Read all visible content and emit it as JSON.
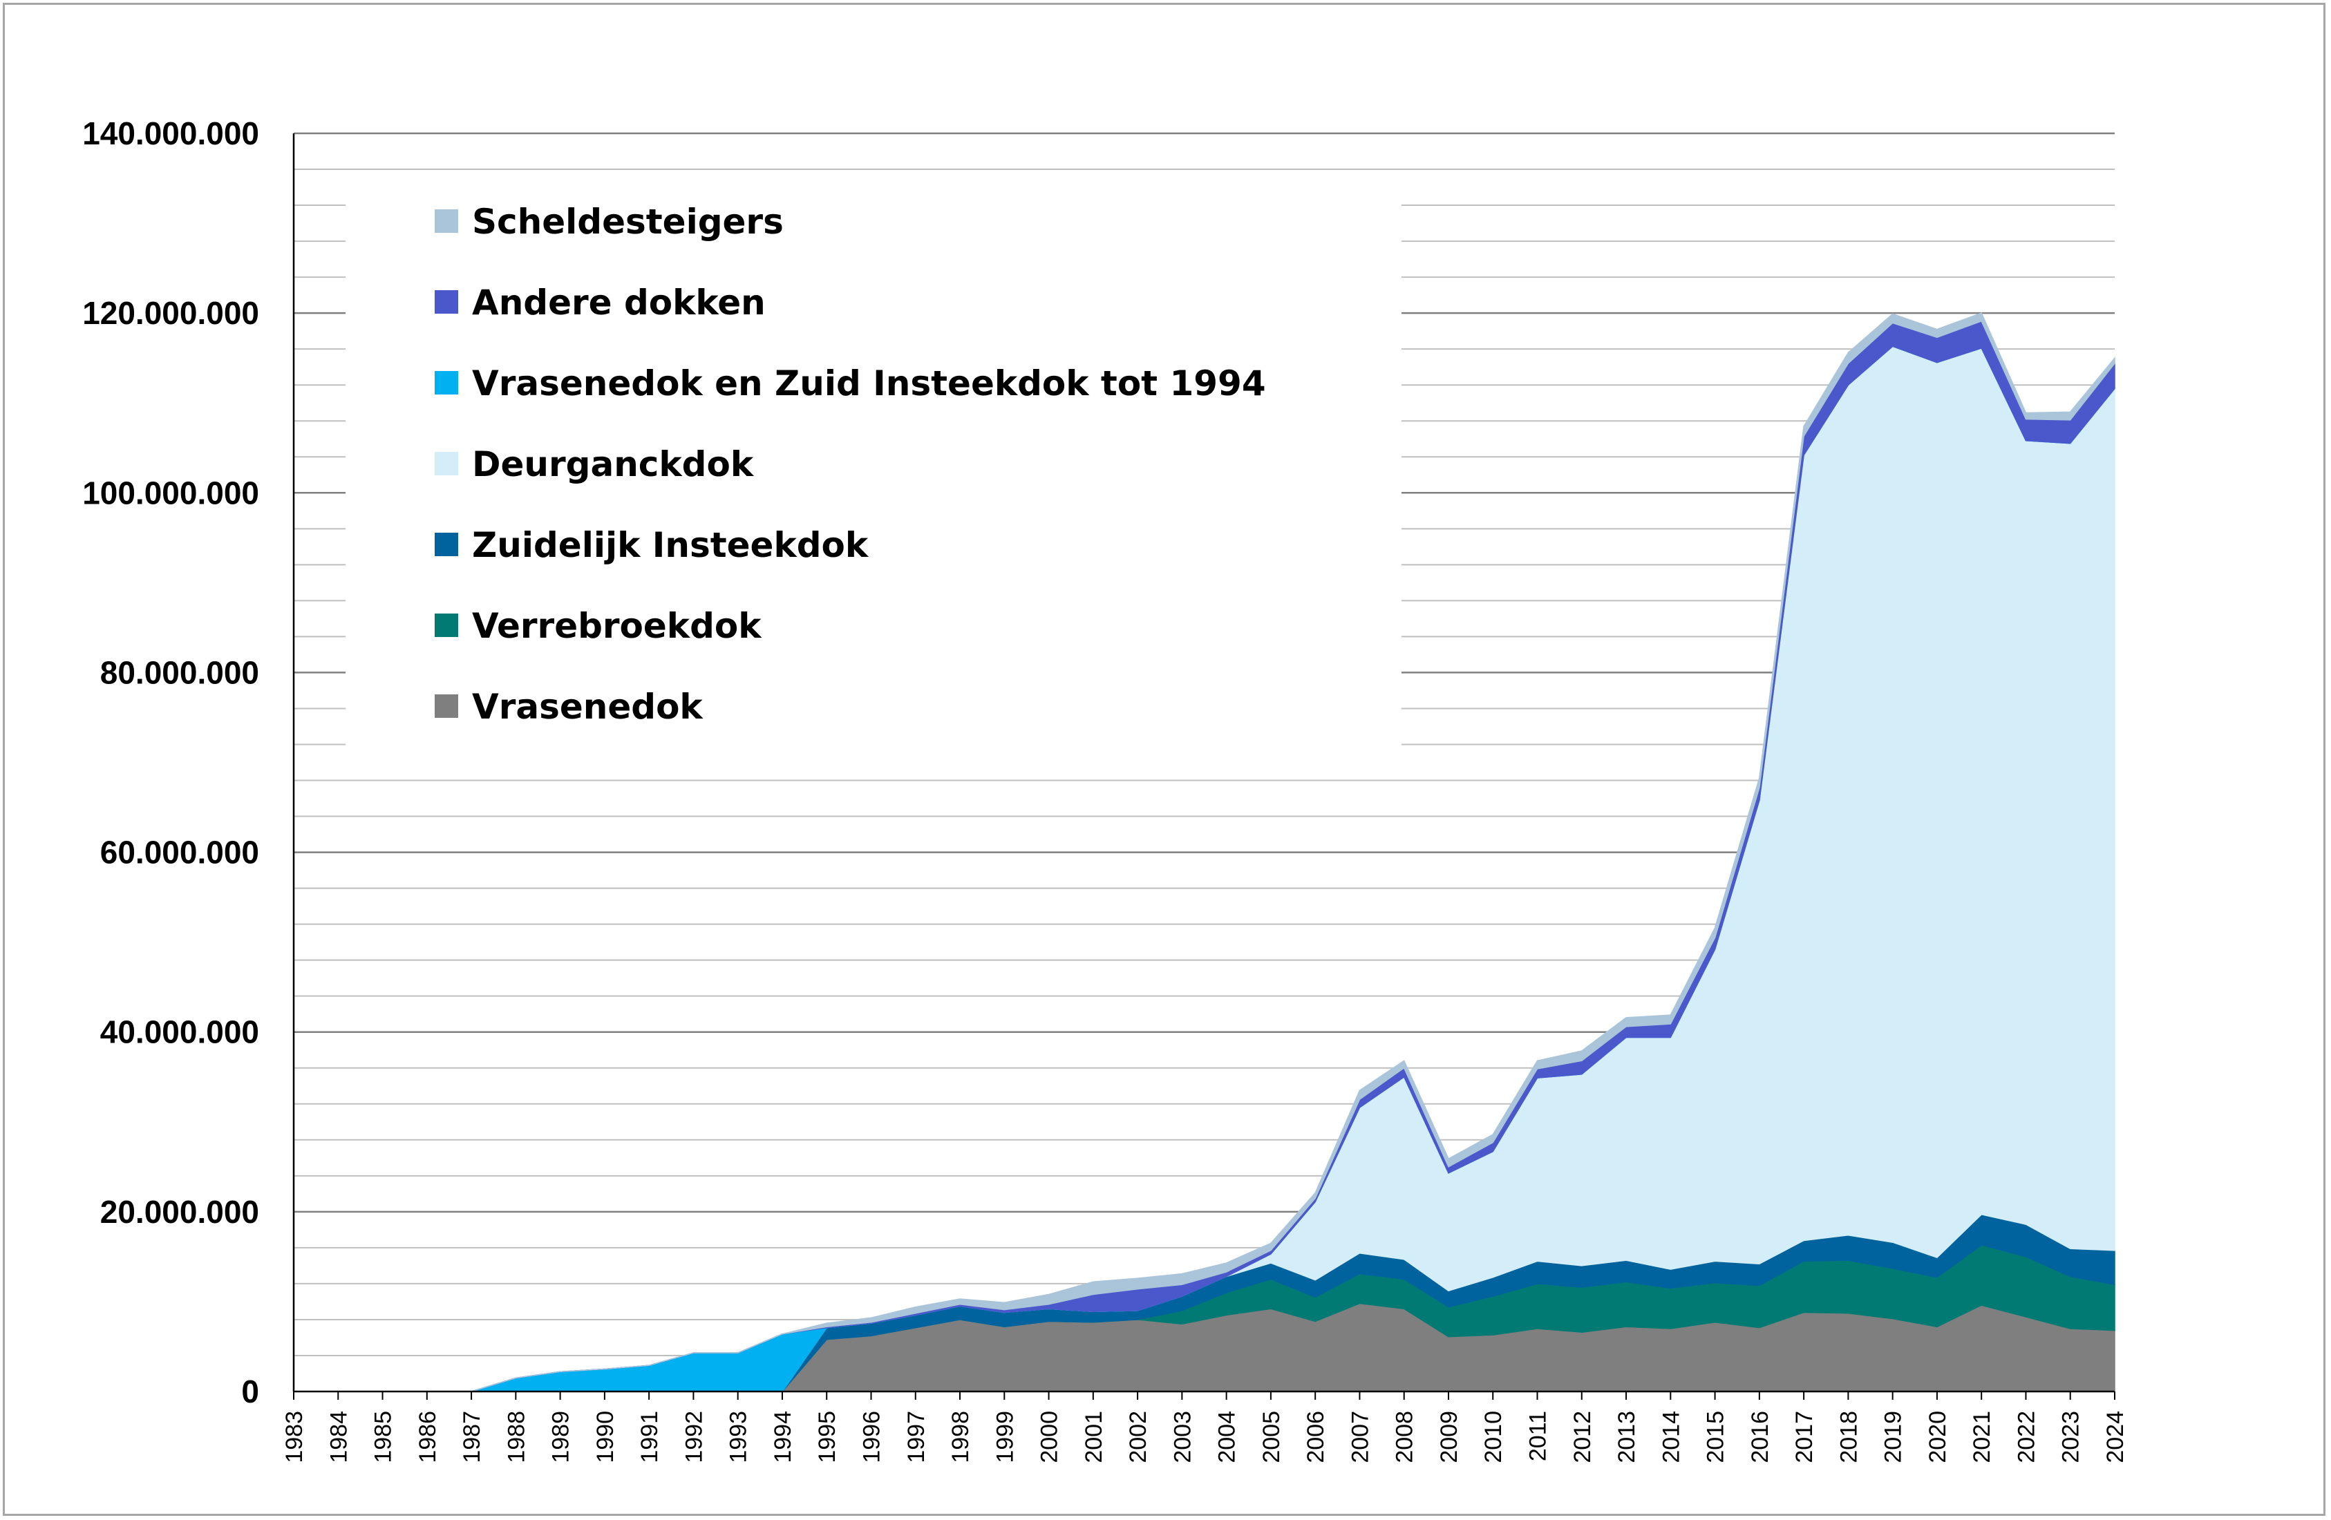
{
  "chart_data": {
    "type": "area",
    "stacked": true,
    "title": "",
    "xlabel": "",
    "ylabel": "",
    "ylim": [
      0,
      140000000
    ],
    "y_ticks": [
      {
        "value": 0,
        "label": "0"
      },
      {
        "value": 20000000,
        "label": "20.000.000"
      },
      {
        "value": 40000000,
        "label": "40.000.000"
      },
      {
        "value": 60000000,
        "label": "60.000.000"
      },
      {
        "value": 80000000,
        "label": "80.000.000"
      },
      {
        "value": 100000000,
        "label": "100.000.000"
      },
      {
        "value": 120000000,
        "label": "120.000.000"
      },
      {
        "value": 140000000,
        "label": "140.000.000"
      }
    ],
    "minor_grid_step": 4000000,
    "grid": true,
    "legend_position": "top-left",
    "categories": [
      "1983",
      "1984",
      "1985",
      "1986",
      "1987",
      "1988",
      "1989",
      "1990",
      "1991",
      "1992",
      "1993",
      "1994",
      "1995",
      "1996",
      "1997",
      "1998",
      "1999",
      "2000",
      "2001",
      "2002",
      "2003",
      "2004",
      "2005",
      "2006",
      "2007",
      "2008",
      "2009",
      "2010",
      "2011",
      "2012",
      "2013",
      "2014",
      "2015",
      "2016",
      "2017",
      "2018",
      "2019",
      "2020",
      "2021",
      "2022",
      "2023",
      "2024"
    ],
    "series": [
      {
        "name": "Vrasenedok",
        "color": "#7f7f7f",
        "values": [
          0,
          0,
          0,
          0,
          0,
          0,
          0,
          0,
          0,
          0,
          0,
          0,
          5800000,
          6200000,
          7100000,
          8000000,
          7200000,
          7800000,
          7700000,
          8000000,
          7500000,
          8500000,
          9200000,
          7800000,
          9800000,
          9200000,
          6100000,
          6300000,
          7000000,
          6600000,
          7200000,
          7000000,
          7700000,
          7100000,
          8800000,
          8700000,
          8100000,
          7200000,
          9600000,
          8300000,
          7000000,
          6800000
        ]
      },
      {
        "name": "Verrebroekdok",
        "color": "#007a73",
        "values": [
          0,
          0,
          0,
          0,
          0,
          0,
          0,
          0,
          0,
          0,
          0,
          0,
          0,
          0,
          0,
          0,
          0,
          0,
          0,
          0,
          1500000,
          2500000,
          3300000,
          2700000,
          3300000,
          3300000,
          3300000,
          4300000,
          5000000,
          5000000,
          5000000,
          4500000,
          4400000,
          4700000,
          5700000,
          5900000,
          5600000,
          5500000,
          6700000,
          6700000,
          5800000,
          5100000
        ]
      },
      {
        "name": "Zuidelijk Insteekdok",
        "color": "#01639e",
        "values": [
          0,
          0,
          0,
          0,
          0,
          0,
          0,
          0,
          0,
          0,
          0,
          0,
          1300000,
          1400000,
          1400000,
          1500000,
          1600000,
          1400000,
          1200000,
          1000000,
          1600000,
          1800000,
          1800000,
          1900000,
          2300000,
          2200000,
          1800000,
          2100000,
          2500000,
          2400000,
          2400000,
          2100000,
          2400000,
          2400000,
          2300000,
          2800000,
          2900000,
          2200000,
          3400000,
          3600000,
          3100000,
          3800000
        ]
      },
      {
        "name": "Deurganckdok",
        "color": "#d3eef9",
        "values": [
          0,
          0,
          0,
          0,
          0,
          0,
          0,
          0,
          0,
          0,
          0,
          0,
          0,
          0,
          0,
          0,
          0,
          0,
          0,
          0,
          0,
          0,
          1000000,
          8700000,
          16200000,
          20300000,
          13100000,
          14000000,
          20400000,
          21300000,
          24800000,
          25800000,
          34700000,
          51600000,
          87400000,
          94600000,
          99700000,
          99600000,
          96400000,
          87200000,
          89600000,
          95900000
        ]
      },
      {
        "name": "Vrasenedok en Zuid Insteekdok tot 1994",
        "color": "#00b0f0",
        "values": [
          0,
          0,
          0,
          0,
          0,
          1500000,
          2200000,
          2500000,
          2900000,
          4300000,
          4300000,
          6400000,
          0,
          0,
          0,
          0,
          0,
          0,
          0,
          0,
          0,
          0,
          0,
          0,
          0,
          0,
          0,
          0,
          0,
          0,
          0,
          0,
          0,
          0,
          0,
          0,
          0,
          0,
          0,
          0,
          0,
          0
        ]
      },
      {
        "name": "Andere dokken",
        "color": "#4b58cb",
        "values": [
          0,
          0,
          0,
          0,
          0,
          0,
          0,
          0,
          0,
          0,
          0,
          0,
          100000,
          100000,
          200000,
          200000,
          300000,
          500000,
          1900000,
          2400000,
          1300000,
          500000,
          400000,
          400000,
          900000,
          1000000,
          700000,
          1000000,
          1000000,
          1500000,
          1200000,
          1500000,
          1300000,
          1400000,
          2100000,
          2400000,
          2600000,
          2800000,
          3000000,
          2400000,
          2600000,
          2800000
        ]
      },
      {
        "name": "Scheldesteigers",
        "color": "#aac5d9",
        "values": [
          0,
          0,
          0,
          0,
          0,
          0,
          0,
          0,
          0,
          0,
          0,
          0,
          400000,
          500000,
          700000,
          600000,
          800000,
          1100000,
          1400000,
          1200000,
          1200000,
          1000000,
          800000,
          600000,
          1000000,
          800000,
          900000,
          900000,
          900000,
          1100000,
          1000000,
          1000000,
          1100000,
          1100000,
          1100000,
          1200000,
          1000000,
          900000,
          900000,
          700000,
          900000,
          600000
        ]
      }
    ],
    "legend": [
      {
        "name": "Scheldesteigers",
        "color": "#aac5d9"
      },
      {
        "name": "Andere dokken",
        "color": "#4b58cb"
      },
      {
        "name": "Vrasenedok en Zuid Insteekdok tot 1994",
        "color": "#00b0f0"
      },
      {
        "name": "Deurganckdok",
        "color": "#d3eef9"
      },
      {
        "name": "Zuidelijk Insteekdok",
        "color": "#01639e"
      },
      {
        "name": "Verrebroekdok",
        "color": "#007a73"
      },
      {
        "name": "Vrasenedok",
        "color": "#7f7f7f"
      }
    ]
  }
}
